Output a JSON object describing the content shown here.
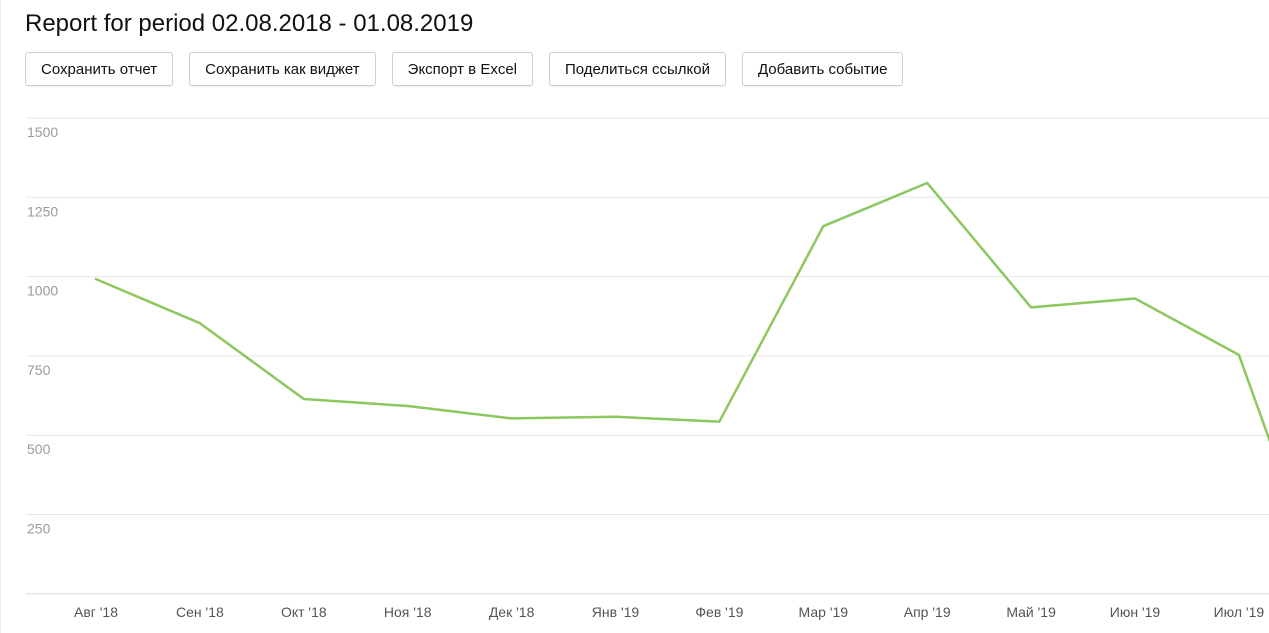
{
  "header": {
    "title": "Report for period 02.08.2018 - 01.08.2019"
  },
  "toolbar": {
    "buttons": [
      {
        "label": "Сохранить отчет"
      },
      {
        "label": "Сохранить как виджет"
      },
      {
        "label": "Экспорт в Excel"
      },
      {
        "label": "Поделиться ссылкой"
      },
      {
        "label": "Добавить событие"
      }
    ]
  },
  "colors": {
    "line": "#8dc85f",
    "grid": "#e6e6e6",
    "tick_text": "#9a9a9a"
  },
  "chart_data": {
    "type": "line",
    "title": "",
    "xlabel": "",
    "ylabel": "",
    "ylim": [
      0,
      1500
    ],
    "yticks": [
      250,
      500,
      750,
      1000,
      1250,
      1500
    ],
    "grid": true,
    "categories": [
      "Авг '18",
      "Сен '18",
      "Окт '18",
      "Ноя '18",
      "Дек '18",
      "Янв '19",
      "Фев '19",
      "Мар '19",
      "Апр '19",
      "Май '19",
      "Июн '19",
      "Июл '19"
    ],
    "series": [
      {
        "values": [
          992,
          853,
          614,
          592,
          553,
          558,
          543,
          1159,
          1295,
          903,
          931,
          753
        ],
        "end_value": 480
      }
    ]
  }
}
